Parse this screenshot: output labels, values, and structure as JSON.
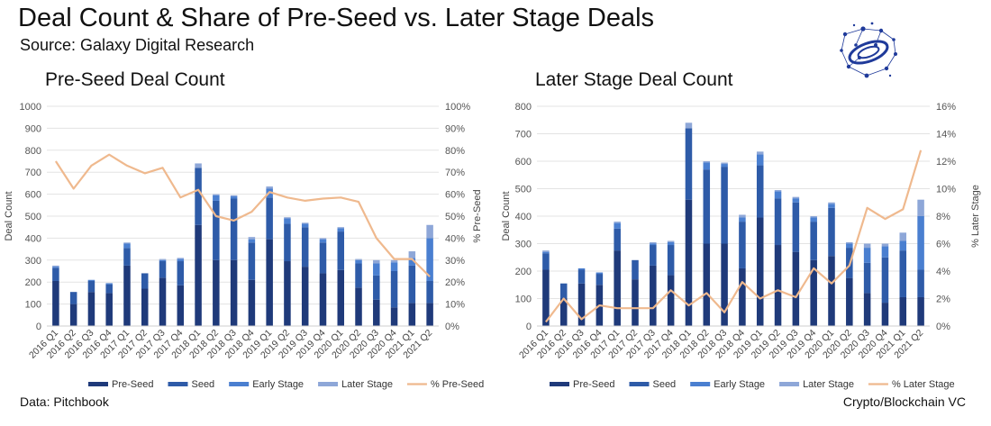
{
  "header": {
    "title": "Deal Count & Share of Pre-Seed vs. Later Stage Deals",
    "subtitle": "Source: Galaxy Digital Research"
  },
  "footer": {
    "left": "Data: Pitchbook",
    "right": "Crypto/Blockchain VC"
  },
  "logo": {
    "name": "galaxy-network-logo"
  },
  "colors": {
    "pre_seed": "#1f3a7a",
    "seed": "#2e5ba8",
    "early_stage": "#4a7fd0",
    "later_stage": "#8ea7d8",
    "share_line": "#efb98e",
    "grid": "#e3e3e3"
  },
  "chart_data": [
    {
      "type": "bar",
      "stacked": true,
      "title": "Pre-Seed Deal Count",
      "categories": [
        "2016 Q1",
        "2016 Q2",
        "2016 Q3",
        "2016 Q4",
        "2017 Q1",
        "2017 Q2",
        "2017 Q3",
        "2017 Q4",
        "2018 Q1",
        "2018 Q2",
        "2018 Q3",
        "2018 Q4",
        "2019 Q1",
        "2019 Q2",
        "2019 Q3",
        "2019 Q4",
        "2020 Q1",
        "2020 Q2",
        "2020 Q3",
        "2020 Q4",
        "2021 Q1",
        "2021 Q2"
      ],
      "series": [
        {
          "name": "Pre-Seed",
          "values": [
            205,
            100,
            155,
            150,
            275,
            170,
            220,
            185,
            460,
            300,
            300,
            210,
            395,
            295,
            270,
            240,
            255,
            175,
            120,
            85,
            105,
            105
          ]
        },
        {
          "name": "Seed",
          "values": [
            60,
            55,
            50,
            40,
            80,
            70,
            75,
            110,
            260,
            270,
            280,
            170,
            190,
            170,
            180,
            140,
            175,
            110,
            110,
            165,
            170,
            100
          ]
        },
        {
          "name": "Early Stage",
          "values": [
            5,
            0,
            5,
            5,
            20,
            0,
            5,
            10,
            0,
            25,
            10,
            15,
            40,
            25,
            15,
            15,
            15,
            15,
            55,
            40,
            35,
            195
          ]
        },
        {
          "name": "Later Stage",
          "values": [
            5,
            0,
            0,
            0,
            5,
            0,
            5,
            5,
            20,
            5,
            5,
            10,
            10,
            5,
            5,
            5,
            5,
            5,
            15,
            10,
            30,
            60
          ]
        }
      ],
      "line": {
        "name": "% Pre-Seed",
        "values": [
          75,
          62.5,
          73,
          78,
          73,
          69.5,
          72,
          58.5,
          62,
          50,
          48,
          52,
          61,
          58.5,
          57,
          58,
          58.5,
          56.5,
          40,
          30.5,
          30.5,
          22.5
        ]
      },
      "y_left": {
        "label": "Deal Count",
        "ylim": [
          0,
          1000
        ],
        "ticks": [
          "0",
          "100",
          "200",
          "300",
          "400",
          "500",
          "600",
          "700",
          "800",
          "900",
          "1000"
        ]
      },
      "y_right": {
        "label": "% Pre-Seed",
        "ylim": [
          0,
          100
        ],
        "ticks": [
          "0%",
          "10%",
          "20%",
          "30%",
          "40%",
          "50%",
          "60%",
          "70%",
          "80%",
          "90%",
          "100%"
        ]
      },
      "legend": [
        "Pre-Seed",
        "Seed",
        "Early Stage",
        "Later Stage",
        "% Pre-Seed"
      ],
      "legend_position": "bottom"
    },
    {
      "type": "bar",
      "stacked": true,
      "title": "Later Stage Deal Count",
      "categories": [
        "2016 Q1",
        "2016 Q2",
        "2016 Q3",
        "2016 Q4",
        "2017 Q1",
        "2017 Q2",
        "2017 Q3",
        "2017 Q4",
        "2018 Q1",
        "2018 Q2",
        "2018 Q3",
        "2018 Q4",
        "2019 Q1",
        "2019 Q2",
        "2019 Q3",
        "2019 Q4",
        "2020 Q1",
        "2020 Q2",
        "2020 Q3",
        "2020 Q4",
        "2021 Q1",
        "2021 Q2"
      ],
      "series": [
        {
          "name": "Pre-Seed",
          "values": [
            205,
            100,
            155,
            150,
            275,
            170,
            220,
            185,
            460,
            300,
            300,
            210,
            395,
            295,
            270,
            240,
            255,
            175,
            120,
            85,
            105,
            105
          ]
        },
        {
          "name": "Seed",
          "values": [
            60,
            55,
            50,
            40,
            80,
            70,
            75,
            110,
            260,
            270,
            280,
            170,
            190,
            170,
            180,
            140,
            175,
            110,
            110,
            165,
            170,
            100
          ]
        },
        {
          "name": "Early Stage",
          "values": [
            5,
            0,
            5,
            5,
            20,
            0,
            5,
            10,
            0,
            25,
            10,
            15,
            40,
            25,
            15,
            15,
            15,
            15,
            55,
            40,
            35,
            195
          ]
        },
        {
          "name": "Later Stage",
          "values": [
            5,
            0,
            0,
            0,
            5,
            0,
            5,
            5,
            20,
            5,
            5,
            10,
            10,
            5,
            5,
            5,
            5,
            5,
            15,
            10,
            30,
            60
          ]
        }
      ],
      "line": {
        "name": "% Later Stage",
        "values": [
          0.3,
          2,
          0.5,
          1.5,
          1.3,
          1.3,
          1.3,
          2.6,
          1.5,
          2.4,
          1,
          3.2,
          2,
          2.6,
          2.1,
          4.2,
          3.1,
          4.4,
          8.6,
          7.8,
          8.5,
          12.8
        ]
      },
      "y_left": {
        "label": "Deal Count",
        "ylim": [
          0,
          800
        ],
        "ticks": [
          "0",
          "100",
          "200",
          "300",
          "400",
          "500",
          "600",
          "700",
          "800"
        ]
      },
      "y_right": {
        "label": "% Later Stage",
        "ylim": [
          0,
          16
        ],
        "ticks": [
          "0%",
          "2%",
          "4%",
          "6%",
          "8%",
          "10%",
          "12%",
          "14%",
          "16%"
        ]
      },
      "legend": [
        "Pre-Seed",
        "Seed",
        "Early Stage",
        "Later Stage",
        "% Later Stage"
      ],
      "legend_position": "bottom"
    }
  ]
}
